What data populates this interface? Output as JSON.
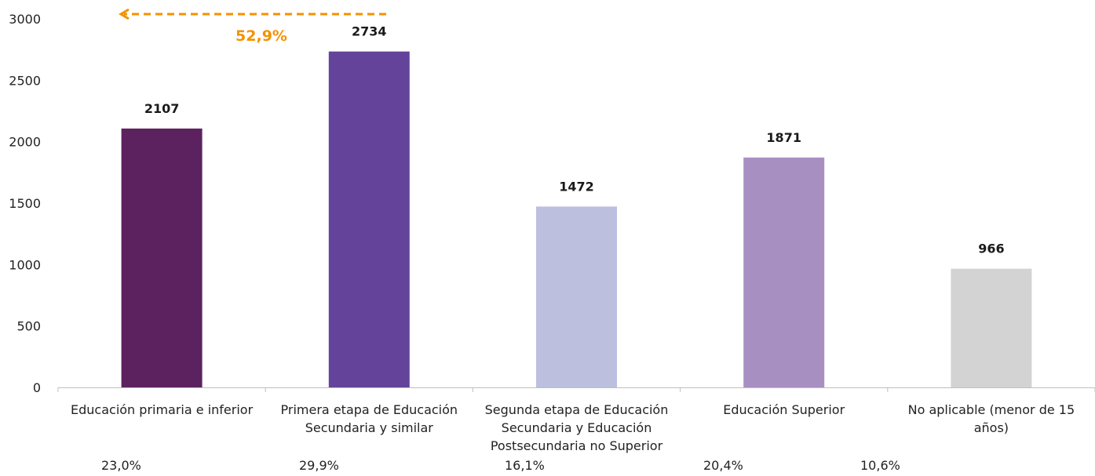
{
  "chart_data": {
    "type": "bar",
    "categories": [
      "Educación primaria e inferior",
      "Primera etapa de Educación Secundaria y similar",
      "Segunda etapa de Educación Secundaria y Educación Postsecundaria no Superior",
      "Educación Superior",
      "No aplicable (menor de 15 años)"
    ],
    "category_lines": [
      [
        "Educación primaria e inferior"
      ],
      [
        "Primera etapa de Educación",
        "Secundaria y similar"
      ],
      [
        "Segunda etapa de Educación",
        "Secundaria y Educación",
        "Postsecundaria no Superior"
      ],
      [
        "Educación Superior"
      ],
      [
        "No aplicable (menor de 15",
        "años)"
      ]
    ],
    "values": [
      2107,
      2734,
      1472,
      1871,
      966
    ],
    "data_labels": [
      "2107",
      "2734",
      "1472",
      "1871",
      "966"
    ],
    "percentages": [
      "23,0%",
      "29,9%",
      "16,1%",
      "20,4%",
      "10,6%"
    ],
    "colors": [
      "#5c2260",
      "#63449a",
      "#bdbfdf",
      "#a78fc2",
      "#d3d3d3"
    ],
    "ylim": [
      0,
      3000
    ],
    "yticks": [
      0,
      500,
      1000,
      1500,
      2000,
      2500,
      3000
    ],
    "ytick_labels": [
      "0",
      "500",
      "1000",
      "1500",
      "2000",
      "2500",
      "3000"
    ],
    "grid": false,
    "legend": "none",
    "annotation": {
      "text": "52,9%",
      "color": "#f39200",
      "arrow": "dashed-left"
    },
    "title": "",
    "xlabel": "",
    "ylabel": ""
  }
}
